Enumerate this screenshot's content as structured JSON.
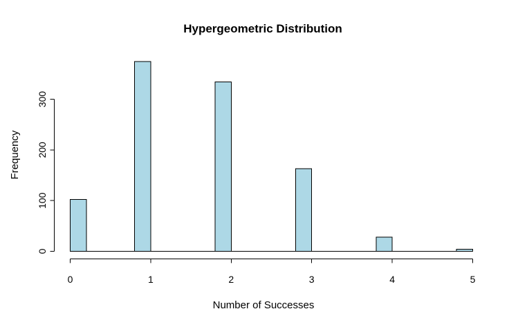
{
  "window": {
    "background": "#ffffff"
  },
  "chart_data": {
    "type": "bar",
    "subtype": "histogram",
    "title": "Hypergeometric Distribution",
    "xlabel": "Number of Successes",
    "ylabel": "Frequency",
    "categories": [
      0,
      1,
      2,
      3,
      4,
      5
    ],
    "values": [
      102,
      374,
      334,
      163,
      28,
      4
    ],
    "bins": [
      {
        "range": [
          0.0,
          0.2
        ],
        "count": 102
      },
      {
        "range": [
          0.8,
          1.0
        ],
        "count": 374
      },
      {
        "range": [
          1.8,
          2.0
        ],
        "count": 334
      },
      {
        "range": [
          2.8,
          3.0
        ],
        "count": 163
      },
      {
        "range": [
          3.8,
          4.0
        ],
        "count": 28
      },
      {
        "range": [
          4.8,
          5.0
        ],
        "count": 4
      }
    ],
    "xticks": [
      0,
      1,
      2,
      3,
      4,
      5
    ],
    "yticks": [
      0,
      100,
      200,
      300
    ],
    "xlim": [
      0,
      5
    ],
    "ylim": [
      0,
      380
    ],
    "grid": false,
    "legend": "none",
    "bar_fill": "#ADD8E6",
    "bar_border": "#000000",
    "axis_color": "#000000",
    "text_color": "#000000"
  }
}
